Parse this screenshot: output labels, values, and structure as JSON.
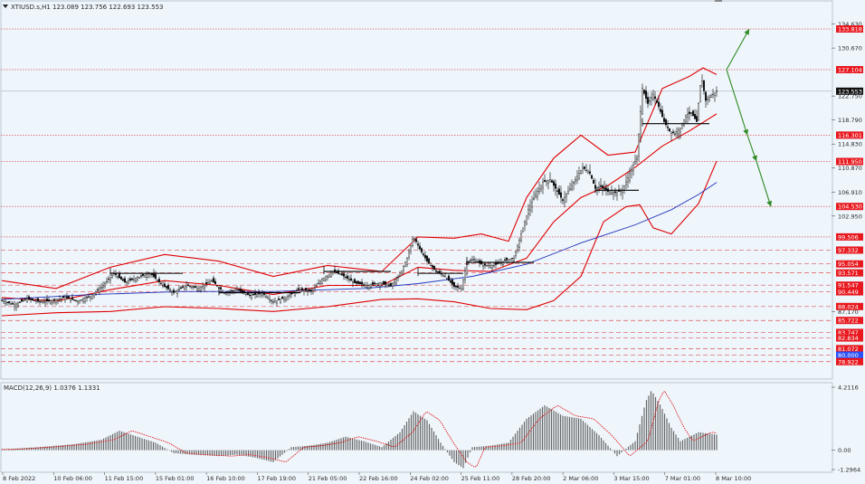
{
  "header": {
    "symbol_line": "XTIUSD.s,H1  123.089 123.756 122.693 123.553",
    "macd_line": "MACD(12,26,9) 1.0376 1.1331"
  },
  "colors": {
    "background": "#eef5fb",
    "bull_candle": "#000000",
    "bollinger": "#e00000",
    "moving_average": "#2233bb",
    "level_line": "#e05555",
    "projection_arrow": "#2e8b22",
    "label_red_bg": "#e8181e",
    "label_black_bg": "#111111",
    "label_blue_bg": "#2a52ff",
    "macd_hist": "#666666",
    "macd_signal": "#e00000"
  },
  "chart_data": [
    {
      "type": "candlestick",
      "title": "XTIUSD.s,H1",
      "ohlc_last": {
        "open": 123.089,
        "high": 123.756,
        "low": 122.693,
        "close": 123.553
      },
      "ylim": [
        76.5,
        138.0
      ],
      "price_ticks": [
        "134.630",
        "130.670",
        "122.750",
        "118.790",
        "114.830",
        "110.870",
        "106.910",
        "102.950",
        "87.170"
      ],
      "time_ticks": [
        "8 Feb 2022",
        "10 Feb 06:00",
        "11 Feb 15:00",
        "15 Feb 01:00",
        "16 Feb 10:00",
        "17 Feb 19:00",
        "21 Feb 05:00",
        "22 Feb 16:00",
        "24 Feb 02:00",
        "25 Feb 11:00",
        "28 Feb 20:00",
        "2 Mar 06:00",
        "3 Mar 15:00",
        "7 Mar 01:00",
        "8 Mar 10:00"
      ],
      "level_lines": [
        {
          "value": 133.818,
          "label": "133.818",
          "style": "dotted",
          "tag": "red"
        },
        {
          "value": 127.104,
          "label": "127.104",
          "style": "dotted",
          "tag": "red"
        },
        {
          "value": 123.553,
          "label": "123.553",
          "style": "current",
          "tag": "black"
        },
        {
          "value": 116.301,
          "label": "116.301",
          "style": "dotted",
          "tag": "red"
        },
        {
          "value": 111.95,
          "label": "111.950",
          "style": "dotted",
          "tag": "red"
        },
        {
          "value": 104.53,
          "label": "104.530",
          "style": "dotted",
          "tag": "red"
        },
        {
          "value": 99.506,
          "label": "99.506",
          "style": "dotted",
          "tag": "red"
        },
        {
          "value": 97.332,
          "label": "97.332",
          "style": "dashed",
          "tag": "red"
        },
        {
          "value": 95.054,
          "label": "95.054",
          "style": "dashed",
          "tag": "red"
        },
        {
          "value": 93.571,
          "label": "93.571",
          "style": "dashed",
          "tag": "red"
        },
        {
          "value": 91.547,
          "label": "91.547",
          "style": "dashed",
          "tag": "red"
        },
        {
          "value": 90.449,
          "label": "90.449",
          "style": "dashed",
          "tag": "red"
        },
        {
          "value": 88.024,
          "label": "88.024",
          "style": "dashed",
          "tag": "red"
        },
        {
          "value": 85.722,
          "label": "85.722",
          "style": "dashed",
          "tag": "red"
        },
        {
          "value": 83.747,
          "label": "83.747",
          "style": "dashed",
          "tag": "red"
        },
        {
          "value": 82.834,
          "label": "82.834",
          "style": "dashed",
          "tag": "red"
        },
        {
          "value": 81.072,
          "label": "81.072",
          "style": "dashed",
          "tag": "red"
        },
        {
          "value": 80.0,
          "label": "80.000",
          "style": "dashed",
          "tag": "blue"
        },
        {
          "value": 78.922,
          "label": "78.922",
          "style": "dashed",
          "tag": "red"
        }
      ],
      "price_path": [
        [
          0,
          89.0
        ],
        [
          14,
          88.3
        ],
        [
          28,
          89.3
        ],
        [
          42,
          88.8
        ],
        [
          56,
          89.0
        ],
        [
          70,
          89.5
        ],
        [
          84,
          88.9
        ],
        [
          98,
          89.7
        ],
        [
          112,
          91.5
        ],
        [
          124,
          93.5
        ],
        [
          136,
          92.0
        ],
        [
          150,
          92.8
        ],
        [
          164,
          93.5
        ],
        [
          178,
          91.5
        ],
        [
          190,
          90.3
        ],
        [
          204,
          91.5
        ],
        [
          218,
          91.0
        ],
        [
          232,
          92.3
        ],
        [
          246,
          90.3
        ],
        [
          260,
          90.8
        ],
        [
          274,
          89.8
        ],
        [
          288,
          90.2
        ],
        [
          300,
          88.8
        ],
        [
          314,
          89.5
        ],
        [
          328,
          90.8
        ],
        [
          342,
          90.5
        ],
        [
          354,
          92.5
        ],
        [
          366,
          93.8
        ],
        [
          376,
          93.2
        ],
        [
          390,
          91.9
        ],
        [
          404,
          91.5
        ],
        [
          418,
          91.9
        ],
        [
          430,
          91.4
        ],
        [
          440,
          93.2
        ],
        [
          448,
          96.0
        ],
        [
          455,
          99.6
        ],
        [
          462,
          97.5
        ],
        [
          470,
          95.5
        ],
        [
          480,
          93.8
        ],
        [
          490,
          93.0
        ],
        [
          500,
          91.3
        ],
        [
          508,
          91.0
        ],
        [
          514,
          95.4
        ],
        [
          522,
          95.8
        ],
        [
          532,
          94.8
        ],
        [
          544,
          94.8
        ],
        [
          556,
          95.6
        ],
        [
          566,
          96.0
        ],
        [
          574,
          100.0
        ],
        [
          582,
          104.0
        ],
        [
          590,
          106.5
        ],
        [
          598,
          108.5
        ],
        [
          606,
          109.0
        ],
        [
          614,
          107.0
        ],
        [
          620,
          105.5
        ],
        [
          626,
          107.0
        ],
        [
          634,
          109.0
        ],
        [
          642,
          111.0
        ],
        [
          650,
          110.0
        ],
        [
          656,
          107.5
        ],
        [
          662,
          107.8
        ],
        [
          670,
          107.0
        ],
        [
          678,
          106.8
        ],
        [
          686,
          107.2
        ],
        [
          694,
          110.0
        ],
        [
          702,
          112.6
        ],
        [
          708,
          124.0
        ],
        [
          714,
          121.5
        ],
        [
          720,
          123.0
        ],
        [
          726,
          121.0
        ],
        [
          732,
          118.5
        ],
        [
          738,
          117.0
        ],
        [
          744,
          116.5
        ],
        [
          750,
          117.5
        ],
        [
          756,
          119.5
        ],
        [
          762,
          120.0
        ],
        [
          768,
          118.5
        ],
        [
          773,
          126.0
        ],
        [
          778,
          122.0
        ],
        [
          784,
          122.8
        ],
        [
          790,
          123.553
        ]
      ],
      "bollinger_upper": [
        [
          0,
          92.3
        ],
        [
          60,
          91.0
        ],
        [
          120,
          94.5
        ],
        [
          180,
          96.6
        ],
        [
          240,
          95.5
        ],
        [
          300,
          93.0
        ],
        [
          360,
          94.8
        ],
        [
          420,
          93.8
        ],
        [
          460,
          99.5
        ],
        [
          500,
          99.3
        ],
        [
          530,
          100.0
        ],
        [
          560,
          98.8
        ],
        [
          580,
          106.0
        ],
        [
          610,
          112.5
        ],
        [
          640,
          116.3
        ],
        [
          670,
          113.0
        ],
        [
          700,
          113.5
        ],
        [
          730,
          124.0
        ],
        [
          760,
          126.0
        ],
        [
          775,
          127.4
        ],
        [
          790,
          126.3
        ]
      ],
      "bollinger_mid": [
        [
          0,
          89.5
        ],
        [
          60,
          88.9
        ],
        [
          120,
          90.8
        ],
        [
          180,
          92.3
        ],
        [
          240,
          91.5
        ],
        [
          300,
          90.0
        ],
        [
          360,
          91.5
        ],
        [
          420,
          91.5
        ],
        [
          460,
          94.5
        ],
        [
          500,
          94.0
        ],
        [
          540,
          93.8
        ],
        [
          580,
          96.0
        ],
        [
          610,
          102.0
        ],
        [
          640,
          106.0
        ],
        [
          670,
          108.0
        ],
        [
          700,
          111.0
        ],
        [
          730,
          114.5
        ],
        [
          760,
          117.0
        ],
        [
          790,
          119.8
        ]
      ],
      "bollinger_lower": [
        [
          0,
          86.5
        ],
        [
          60,
          87.0
        ],
        [
          120,
          87.2
        ],
        [
          180,
          88.0
        ],
        [
          240,
          87.7
        ],
        [
          300,
          87.2
        ],
        [
          360,
          88.0
        ],
        [
          420,
          89.2
        ],
        [
          460,
          89.3
        ],
        [
          500,
          88.8
        ],
        [
          540,
          87.7
        ],
        [
          580,
          87.5
        ],
        [
          610,
          89.0
        ],
        [
          640,
          93.0
        ],
        [
          665,
          102.0
        ],
        [
          690,
          104.5
        ],
        [
          705,
          104.8
        ],
        [
          720,
          101.0
        ],
        [
          740,
          100.0
        ],
        [
          770,
          105.0
        ],
        [
          790,
          112.0
        ]
      ],
      "moving_average": [
        [
          0,
          89.2
        ],
        [
          100,
          90.0
        ],
        [
          200,
          90.5
        ],
        [
          300,
          90.5
        ],
        [
          400,
          91.0
        ],
        [
          460,
          91.8
        ],
        [
          520,
          93.0
        ],
        [
          580,
          95.0
        ],
        [
          640,
          98.5
        ],
        [
          700,
          101.5
        ],
        [
          740,
          104.0
        ],
        [
          770,
          106.5
        ],
        [
          790,
          108.5
        ]
      ],
      "projection_arrows": [
        {
          "from": [
            803,
            127.1
          ],
          "to": [
            828,
            133.8
          ]
        },
        {
          "from": [
            803,
            127.1
          ],
          "to": [
            826,
            116.3
          ]
        },
        {
          "from": [
            826,
            116.3
          ],
          "to": [
            836,
            112.0
          ]
        },
        {
          "from": [
            836,
            112.0
          ],
          "to": [
            852,
            104.5
          ]
        }
      ],
      "range_boxes": [
        {
          "x0": 708,
          "x1": 782,
          "value": 118.2
        },
        {
          "x0": 656,
          "x1": 704,
          "value": 107.2
        },
        {
          "x0": 514,
          "x1": 588,
          "value": 95.3
        },
        {
          "x0": 460,
          "x1": 510,
          "value": 93.5
        },
        {
          "x0": 356,
          "x1": 430,
          "value": 93.8
        },
        {
          "x0": 240,
          "x1": 330,
          "value": 90.3
        },
        {
          "x0": 120,
          "x1": 200,
          "value": 93.5
        }
      ]
    },
    {
      "type": "bar",
      "title": "MACD(12,26,9)",
      "macd_value": 1.0376,
      "signal_value": 1.1331,
      "ylim": [
        -1.2964,
        4.2116
      ],
      "y_ticks": [
        "4.2116",
        "0.00",
        "-1.2964"
      ],
      "histogram_shape": [
        [
          0,
          0.05
        ],
        [
          40,
          0.2
        ],
        [
          80,
          0.4
        ],
        [
          110,
          0.7
        ],
        [
          130,
          1.3
        ],
        [
          150,
          0.9
        ],
        [
          170,
          0.5
        ],
        [
          190,
          -0.2
        ],
        [
          210,
          -0.3
        ],
        [
          240,
          -0.4
        ],
        [
          260,
          -0.3
        ],
        [
          280,
          -0.5
        ],
        [
          300,
          -0.8
        ],
        [
          320,
          0.2
        ],
        [
          340,
          0.3
        ],
        [
          360,
          0.5
        ],
        [
          380,
          0.9
        ],
        [
          400,
          0.6
        ],
        [
          420,
          0.2
        ],
        [
          440,
          1.2
        ],
        [
          455,
          2.6
        ],
        [
          470,
          2.0
        ],
        [
          485,
          0.5
        ],
        [
          500,
          -0.8
        ],
        [
          510,
          -1.2
        ],
        [
          520,
          0.2
        ],
        [
          540,
          0.3
        ],
        [
          560,
          0.5
        ],
        [
          580,
          2.1
        ],
        [
          600,
          3.0
        ],
        [
          620,
          2.3
        ],
        [
          640,
          2.1
        ],
        [
          660,
          1.0
        ],
        [
          680,
          -0.4
        ],
        [
          700,
          0.6
        ],
        [
          712,
          3.3
        ],
        [
          718,
          4.0
        ],
        [
          728,
          3.0
        ],
        [
          740,
          1.5
        ],
        [
          750,
          0.6
        ],
        [
          770,
          1.2
        ],
        [
          790,
          1.04
        ]
      ]
    }
  ]
}
